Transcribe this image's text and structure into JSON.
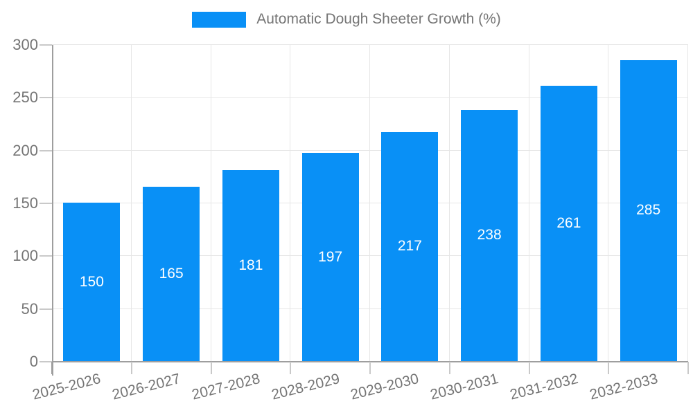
{
  "legend": {
    "label": "Automatic Dough Sheeter Growth (%)"
  },
  "chart_data": {
    "type": "bar",
    "title": "",
    "xlabel": "",
    "ylabel": "",
    "categories": [
      "2025-2026",
      "2026-2027",
      "2027-2028",
      "2028-2029",
      "2029-2030",
      "2030-2031",
      "2031-2032",
      "2032-2033"
    ],
    "series": [
      {
        "name": "Automatic Dough Sheeter Growth (%)",
        "values": [
          150,
          165,
          181,
          197,
          217,
          238,
          261,
          285
        ]
      }
    ],
    "value_labels_shown": true,
    "ylim": [
      0,
      300
    ],
    "yticks": [
      0,
      50,
      100,
      150,
      200,
      250,
      300
    ],
    "grid": true,
    "legend_position": "top-center",
    "x_tick_label_rotation_deg": -14,
    "style": {
      "bar_color": "#0990F6",
      "value_label_color": "#ffffff",
      "grid_color": "#e6e6e6",
      "axis_color": "#9e9e9e",
      "tick_color": "#c9c9c9",
      "tick_label_color": "#757575",
      "legend_text_color": "#757575",
      "background_color": "#ffffff"
    }
  }
}
